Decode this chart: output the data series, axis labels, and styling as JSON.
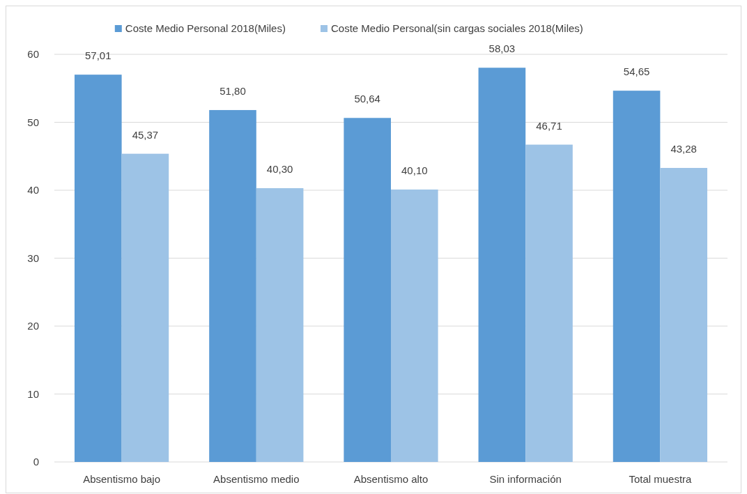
{
  "chart_data": {
    "type": "bar",
    "categories": [
      "Absentismo bajo",
      "Absentismo medio",
      "Absentismo alto",
      "Sin información",
      "Total muestra"
    ],
    "series": [
      {
        "name": "Coste Medio Personal 2018(Miles)",
        "color": "#5b9bd5",
        "values": [
          57.01,
          51.8,
          50.64,
          58.03,
          54.65
        ],
        "value_labels": [
          "57,01",
          "51,80",
          "50,64",
          "58,03",
          "54,65"
        ]
      },
      {
        "name": "Coste Medio Personal(sin cargas sociales 2018(Miles)",
        "color": "#9dc3e6",
        "values": [
          45.37,
          40.3,
          40.1,
          46.71,
          43.28
        ],
        "value_labels": [
          "45,37",
          "40,30",
          "40,10",
          "46,71",
          "43,28"
        ]
      }
    ],
    "ylim": [
      0,
      60
    ],
    "yticks": [
      0,
      10,
      20,
      30,
      40,
      50,
      60
    ],
    "grid": "y",
    "legend": "top"
  }
}
